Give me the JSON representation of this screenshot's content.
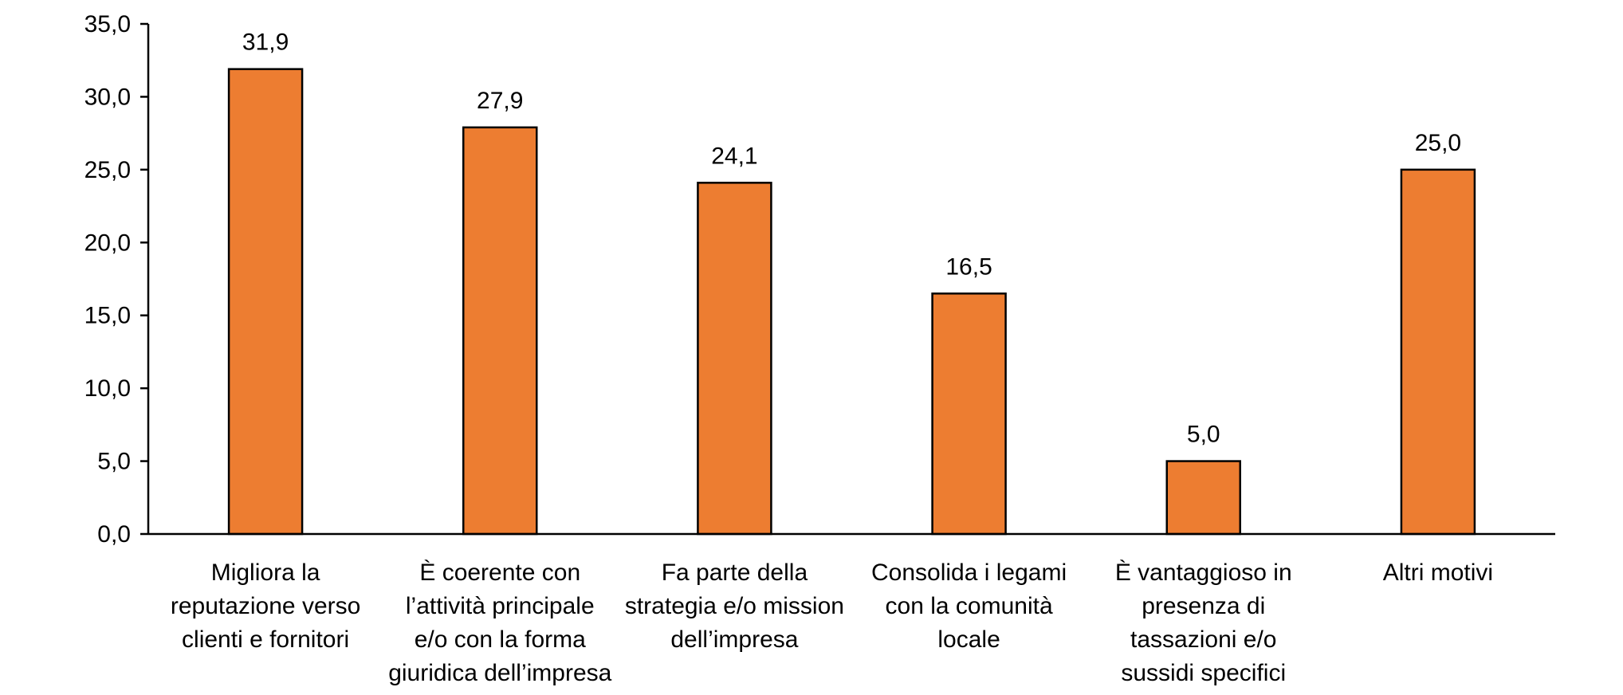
{
  "chart_data": {
    "type": "bar",
    "categories": [
      [
        "Migliora la",
        "reputazione verso",
        "clienti e fornitori"
      ],
      [
        "È coerente  con",
        "l’attività  principale",
        "e/o con la forma",
        "giuridica  dell’impresa"
      ],
      [
        "Fa parte  della",
        "strategia  e/o mission",
        "dell’impresa"
      ],
      [
        "Consolida i legami",
        "con la comunità",
        "locale"
      ],
      [
        "È vantaggioso in",
        "presenza di",
        "tassazioni e/o",
        "sussidi specifici"
      ],
      [
        "Altri motivi"
      ]
    ],
    "values": [
      31.9,
      27.9,
      24.1,
      16.5,
      5.0,
      25.0
    ],
    "data_labels": [
      "31,9",
      "27,9",
      "24,1",
      "16,5",
      "5,0",
      "25,0"
    ],
    "y_ticks": [
      "0,0",
      "5,0",
      "10,0",
      "15,0",
      "20,0",
      "25,0",
      "30,0",
      "35,0"
    ],
    "y_tick_values": [
      0,
      5,
      10,
      15,
      20,
      25,
      30,
      35
    ],
    "ylim": [
      0,
      35
    ],
    "title": "",
    "xlabel": "",
    "ylabel": "",
    "grid": false,
    "legend": "none",
    "colors": {
      "bar": "#ED7D31",
      "axis": "#000000"
    }
  }
}
